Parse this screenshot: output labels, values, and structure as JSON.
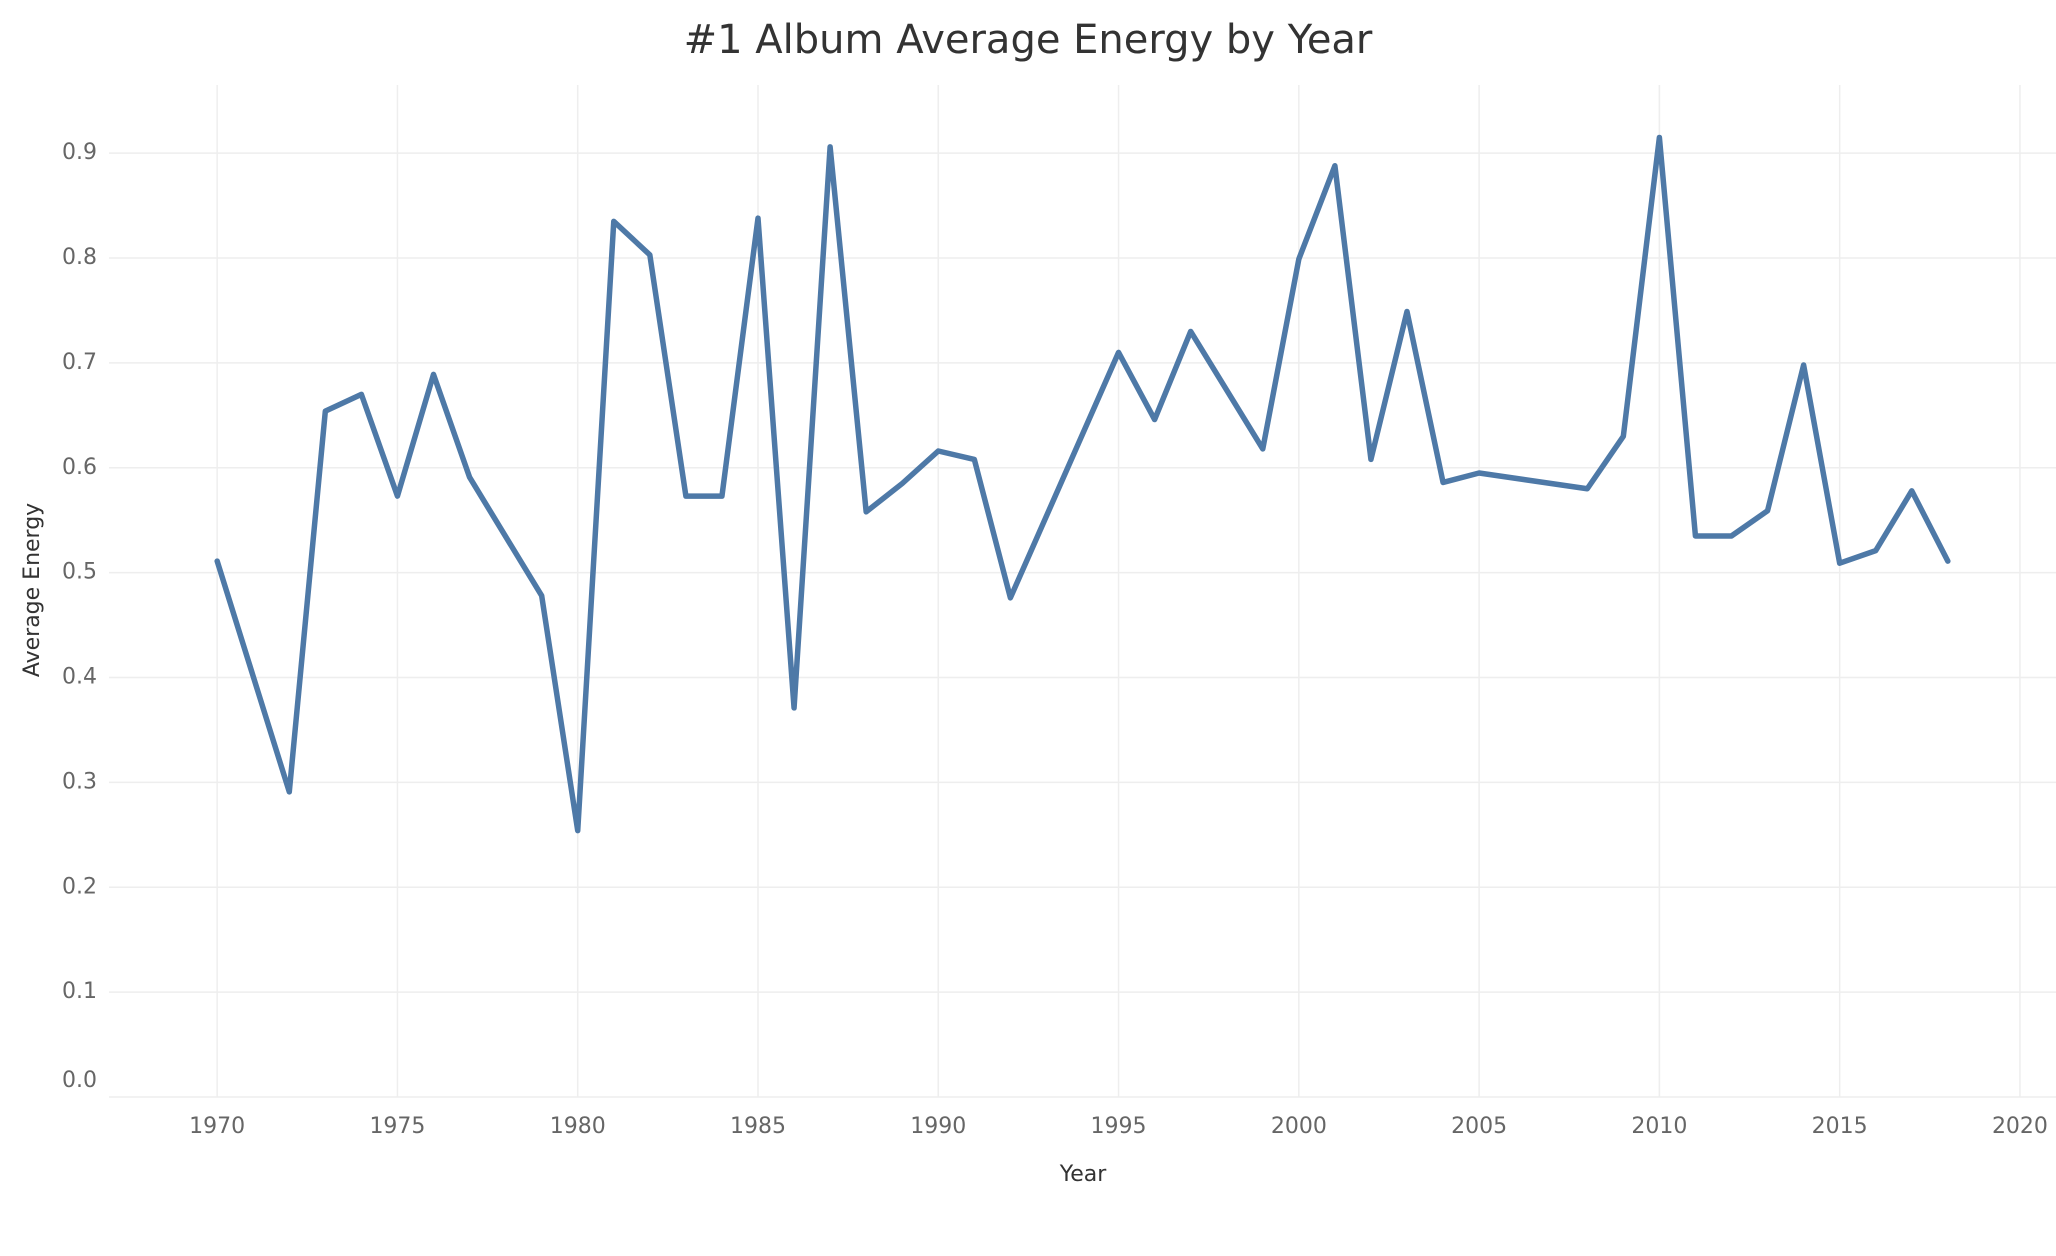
{
  "chart_data": {
    "type": "line",
    "title": "#1 Album Average Energy by Year",
    "x_label": "Year",
    "y_label": "Average Energy",
    "x": [
      1970,
      1972,
      1973,
      1974,
      1975,
      1976,
      1977,
      1979,
      1980,
      1981,
      1982,
      1983,
      1984,
      1985,
      1986,
      1987,
      1988,
      1989,
      1990,
      1991,
      1992,
      1995,
      1996,
      1997,
      1999,
      2000,
      2001,
      2002,
      2003,
      2004,
      2005,
      2008,
      2009,
      2010,
      2011,
      2012,
      2013,
      2014,
      2015,
      2016,
      2017,
      2018
    ],
    "series": [
      {
        "name": "Average Energy",
        "color": "#4e79a7",
        "values": [
          0.511,
          0.291,
          0.654,
          0.67,
          0.573,
          0.689,
          0.591,
          0.478,
          0.254,
          0.835,
          0.803,
          0.573,
          0.573,
          0.838,
          0.371,
          0.906,
          0.558,
          0.585,
          0.616,
          0.608,
          0.476,
          0.71,
          0.646,
          0.73,
          0.618,
          0.799,
          0.888,
          0.608,
          0.749,
          0.586,
          0.595,
          0.58,
          0.63,
          0.915,
          0.535,
          0.535,
          0.559,
          0.698,
          0.509,
          0.521,
          0.578,
          0.511
        ]
      }
    ],
    "xlim": [
      1967,
      2021
    ],
    "xticks": [
      1970,
      1975,
      1980,
      1985,
      1990,
      1995,
      2000,
      2005,
      2010,
      2015,
      2020
    ],
    "ylim": [
      0,
      0.965
    ],
    "yticks": [
      {
        "value": 0,
        "label": "0.0"
      },
      0.1,
      0.2,
      0.3,
      0.4,
      0.5,
      0.6,
      0.7,
      0.8,
      0.9
    ],
    "grid": true
  }
}
